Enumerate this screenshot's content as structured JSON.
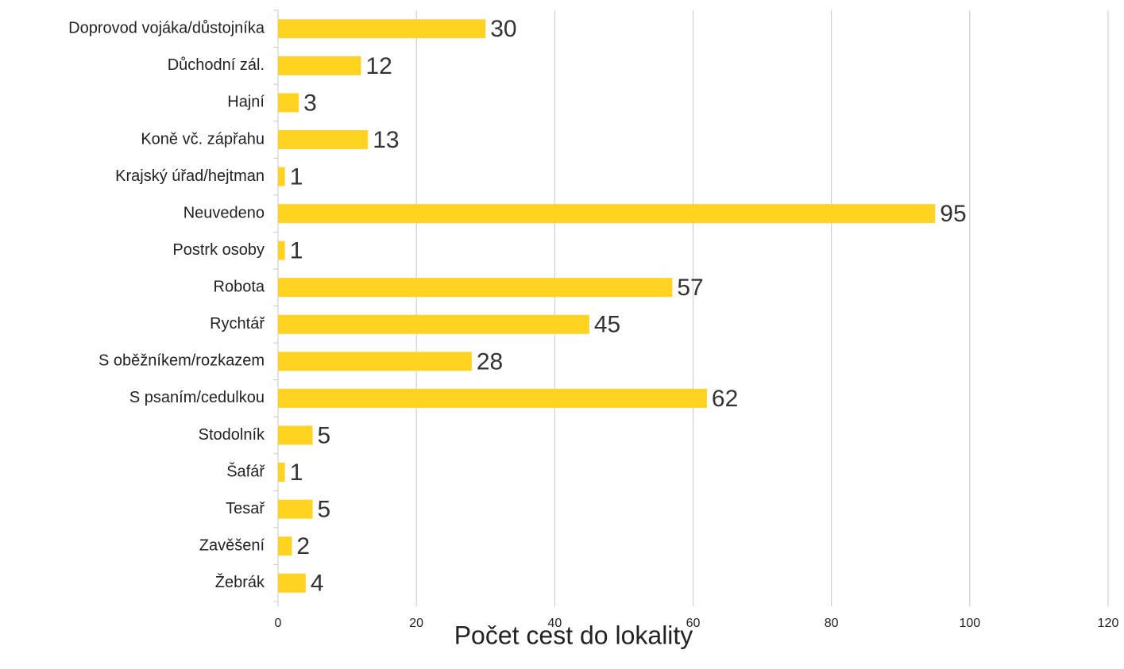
{
  "chart_data": {
    "type": "hbar",
    "xlabel": "Počet cest do lokality",
    "categories": [
      "Doprovod vojáka/důstojníka",
      "Důchodní zál.",
      "Hajní",
      "Koně vč. zápřahu",
      "Krajský úřad/hejtman",
      "Neuvedeno",
      "Postrk osoby",
      "Robota",
      "Rychtář",
      "S oběžníkem/rozkazem",
      "S psaním/cedulkou",
      "Stodolník",
      "Šafář",
      "Tesař",
      "Zavěšení",
      "Žebrák"
    ],
    "values": [
      30,
      12,
      3,
      13,
      1,
      95,
      1,
      57,
      45,
      28,
      62,
      5,
      1,
      5,
      2,
      4
    ],
    "color": "#ffd320",
    "xlim": [
      0,
      120
    ],
    "xticks": [
      0,
      20,
      40,
      60,
      80,
      100,
      120
    ],
    "grid": true
  }
}
